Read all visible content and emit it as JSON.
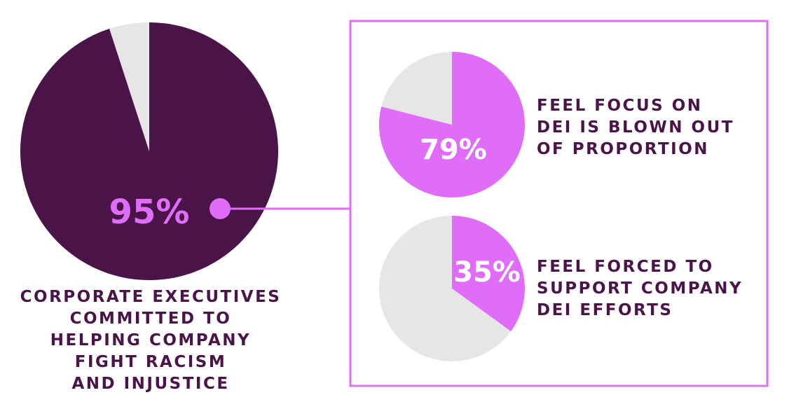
{
  "colors": {
    "dark_purple": "#4a1449",
    "magenta": "#e06cfa",
    "light_gray": "#e6e6e7",
    "white": "#ffffff"
  },
  "chart_data": [
    {
      "type": "pie",
      "slices": [
        {
          "label": "Corporate executives committed to helping company fight racism and injustice",
          "value": 95
        },
        {
          "label": "",
          "value": 5
        }
      ],
      "value_label": "95%",
      "caption_lines": [
        "CORPORATE EXECUTIVES",
        "COMMITTED TO",
        "HELPING COMPANY",
        "FIGHT RACISM",
        "AND INJUSTICE"
      ]
    },
    {
      "type": "pie",
      "slices": [
        {
          "label": "Feel focus on DEI is blown out of proportion",
          "value": 79
        },
        {
          "label": "",
          "value": 21
        }
      ],
      "value_label": "79%",
      "caption_lines": [
        "FEEL FOCUS ON",
        "DEI IS BLOWN OUT",
        "OF PROPORTION"
      ]
    },
    {
      "type": "pie",
      "slices": [
        {
          "label": "Feel forced to support company DEI efforts",
          "value": 35
        },
        {
          "label": "",
          "value": 65
        }
      ],
      "value_label": "35%",
      "caption_lines": [
        "FEEL FORCED TO",
        "SUPPORT COMPANY",
        "DEI EFFORTS"
      ]
    }
  ]
}
